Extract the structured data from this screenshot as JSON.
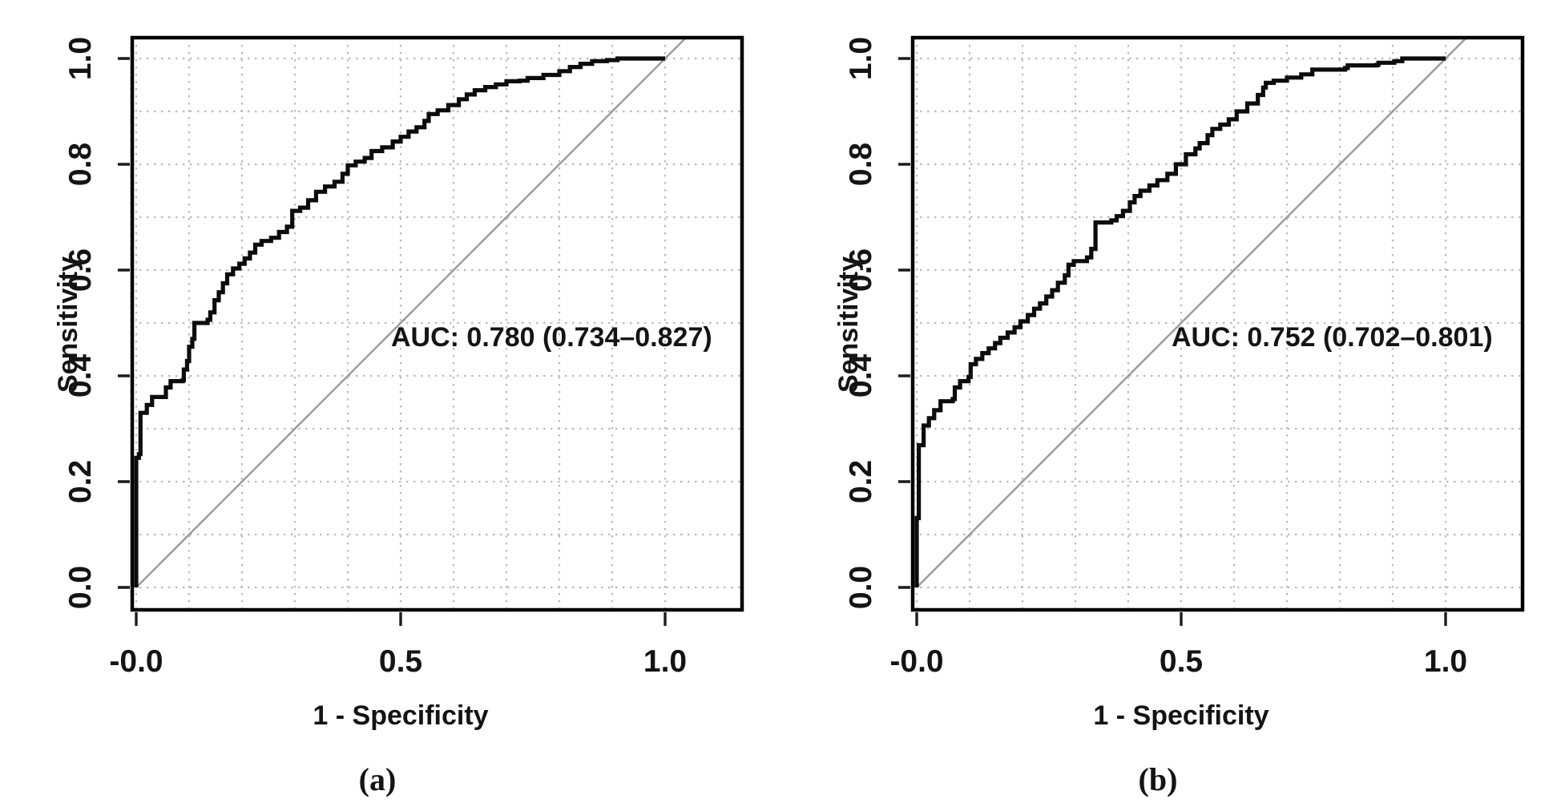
{
  "colors": {
    "curve": "#0c0c0c",
    "diagonal": "#9b9b9b",
    "grid": "#bcbcbc"
  },
  "chart_data": [
    {
      "type": "line",
      "panel": "a",
      "caption": "(a)",
      "xlabel": "1 - Specificity",
      "ylabel": "Sensitivity",
      "xtick_labels": [
        "-0.0",
        "0.5",
        "1.0"
      ],
      "xtick_values": [
        0,
        0.5,
        1.0
      ],
      "ytick_labels": [
        "0.0",
        "0.2",
        "0.4",
        "0.6",
        "0.8",
        "1.0"
      ],
      "ytick_values": [
        0,
        0.2,
        0.4,
        0.6,
        0.8,
        1.0
      ],
      "xlim": [
        -0.008,
        1.145
      ],
      "ylim": [
        -0.042,
        1.039
      ],
      "grid": {
        "step": 0.1,
        "style": "dotted"
      },
      "diagonal": {
        "from": [
          0,
          0
        ],
        "to": [
          1.039,
          1.039
        ]
      },
      "auc": {
        "value": 0.78,
        "ci_low": 0.734,
        "ci_high": 0.827,
        "label": "AUC: 0.780 (0.734–0.827)"
      },
      "series": [
        {
          "name": "ROC curve",
          "points": [
            [
              0,
              0
            ],
            [
              0,
              0.245
            ],
            [
              0.005,
              0.252
            ],
            [
              0.008,
              0.26
            ],
            [
              0.008,
              0.33
            ],
            [
              0.02,
              0.345
            ],
            [
              0.03,
              0.36
            ],
            [
              0.055,
              0.36
            ],
            [
              0.056,
              0.378
            ],
            [
              0.065,
              0.39
            ],
            [
              0.088,
              0.392
            ],
            [
              0.09,
              0.412
            ],
            [
              0.096,
              0.428
            ],
            [
              0.1,
              0.455
            ],
            [
              0.106,
              0.47
            ],
            [
              0.11,
              0.5
            ],
            [
              0.135,
              0.506
            ],
            [
              0.14,
              0.52
            ],
            [
              0.148,
              0.543
            ],
            [
              0.156,
              0.558
            ],
            [
              0.164,
              0.575
            ],
            [
              0.172,
              0.592
            ],
            [
              0.183,
              0.603
            ],
            [
              0.195,
              0.612
            ],
            [
              0.205,
              0.622
            ],
            [
              0.215,
              0.633
            ],
            [
              0.225,
              0.648
            ],
            [
              0.237,
              0.655
            ],
            [
              0.255,
              0.661
            ],
            [
              0.27,
              0.672
            ],
            [
              0.285,
              0.682
            ],
            [
              0.295,
              0.712
            ],
            [
              0.31,
              0.718
            ],
            [
              0.325,
              0.732
            ],
            [
              0.34,
              0.748
            ],
            [
              0.357,
              0.758
            ],
            [
              0.375,
              0.767
            ],
            [
              0.39,
              0.782
            ],
            [
              0.4,
              0.798
            ],
            [
              0.415,
              0.805
            ],
            [
              0.432,
              0.812
            ],
            [
              0.445,
              0.825
            ],
            [
              0.465,
              0.832
            ],
            [
              0.485,
              0.843
            ],
            [
              0.5,
              0.852
            ],
            [
              0.515,
              0.862
            ],
            [
              0.53,
              0.87
            ],
            [
              0.545,
              0.882
            ],
            [
              0.553,
              0.895
            ],
            [
              0.57,
              0.902
            ],
            [
              0.59,
              0.912
            ],
            [
              0.61,
              0.923
            ],
            [
              0.625,
              0.932
            ],
            [
              0.64,
              0.94
            ],
            [
              0.66,
              0.946
            ],
            [
              0.68,
              0.951
            ],
            [
              0.7,
              0.957
            ],
            [
              0.725,
              0.958
            ],
            [
              0.74,
              0.963
            ],
            [
              0.77,
              0.969
            ],
            [
              0.8,
              0.976
            ],
            [
              0.82,
              0.984
            ],
            [
              0.84,
              0.99
            ],
            [
              0.862,
              0.995
            ],
            [
              0.89,
              0.997
            ],
            [
              0.91,
              1
            ],
            [
              1,
              1
            ]
          ]
        }
      ]
    },
    {
      "type": "line",
      "panel": "b",
      "caption": "(b)",
      "xlabel": "1 - Specificity",
      "ylabel": "Sensitivity",
      "xtick_labels": [
        "-0.0",
        "0.5",
        "1.0"
      ],
      "xtick_values": [
        0,
        0.5,
        1.0
      ],
      "ytick_labels": [
        "0.0",
        "0.2",
        "0.4",
        "0.6",
        "0.8",
        "1.0"
      ],
      "ytick_values": [
        0,
        0.2,
        0.4,
        0.6,
        0.8,
        1.0
      ],
      "xlim": [
        -0.008,
        1.145
      ],
      "ylim": [
        -0.042,
        1.039
      ],
      "grid": {
        "step": 0.1,
        "style": "dotted"
      },
      "diagonal": {
        "from": [
          0,
          0
        ],
        "to": [
          1.039,
          1.039
        ]
      },
      "auc": {
        "value": 0.752,
        "ci_low": 0.702,
        "ci_high": 0.801,
        "label": "AUC: 0.752 (0.702–0.801)"
      },
      "series": [
        {
          "name": "ROC curve",
          "points": [
            [
              0,
              0
            ],
            [
              0,
              0.131
            ],
            [
              0.004,
              0.14
            ],
            [
              0.004,
              0.269
            ],
            [
              0.013,
              0.277
            ],
            [
              0.013,
              0.306
            ],
            [
              0.023,
              0.32
            ],
            [
              0.033,
              0.335
            ],
            [
              0.045,
              0.352
            ],
            [
              0.068,
              0.356
            ],
            [
              0.072,
              0.378
            ],
            [
              0.082,
              0.39
            ],
            [
              0.098,
              0.398
            ],
            [
              0.102,
              0.422
            ],
            [
              0.112,
              0.432
            ],
            [
              0.124,
              0.443
            ],
            [
              0.136,
              0.452
            ],
            [
              0.148,
              0.462
            ],
            [
              0.158,
              0.472
            ],
            [
              0.172,
              0.482
            ],
            [
              0.185,
              0.492
            ],
            [
              0.196,
              0.503
            ],
            [
              0.21,
              0.515
            ],
            [
              0.222,
              0.527
            ],
            [
              0.233,
              0.537
            ],
            [
              0.245,
              0.55
            ],
            [
              0.256,
              0.562
            ],
            [
              0.267,
              0.576
            ],
            [
              0.28,
              0.59
            ],
            [
              0.287,
              0.61
            ],
            [
              0.297,
              0.617
            ],
            [
              0.322,
              0.624
            ],
            [
              0.33,
              0.64
            ],
            [
              0.338,
              0.69
            ],
            [
              0.368,
              0.694
            ],
            [
              0.378,
              0.702
            ],
            [
              0.39,
              0.712
            ],
            [
              0.403,
              0.728
            ],
            [
              0.412,
              0.74
            ],
            [
              0.423,
              0.75
            ],
            [
              0.44,
              0.76
            ],
            [
              0.455,
              0.77
            ],
            [
              0.474,
              0.782
            ],
            [
              0.49,
              0.8
            ],
            [
              0.509,
              0.819
            ],
            [
              0.527,
              0.83
            ],
            [
              0.535,
              0.84
            ],
            [
              0.55,
              0.855
            ],
            [
              0.559,
              0.867
            ],
            [
              0.574,
              0.875
            ],
            [
              0.59,
              0.885
            ],
            [
              0.605,
              0.9
            ],
            [
              0.625,
              0.915
            ],
            [
              0.645,
              0.931
            ],
            [
              0.655,
              0.945
            ],
            [
              0.66,
              0.954
            ],
            [
              0.675,
              0.958
            ],
            [
              0.7,
              0.964
            ],
            [
              0.727,
              0.97
            ],
            [
              0.748,
              0.979
            ],
            [
              0.81,
              0.982
            ],
            [
              0.815,
              0.987
            ],
            [
              0.87,
              0.988
            ],
            [
              0.873,
              0.992
            ],
            [
              0.903,
              0.995
            ],
            [
              0.918,
              1
            ],
            [
              1,
              1
            ]
          ]
        }
      ]
    }
  ]
}
